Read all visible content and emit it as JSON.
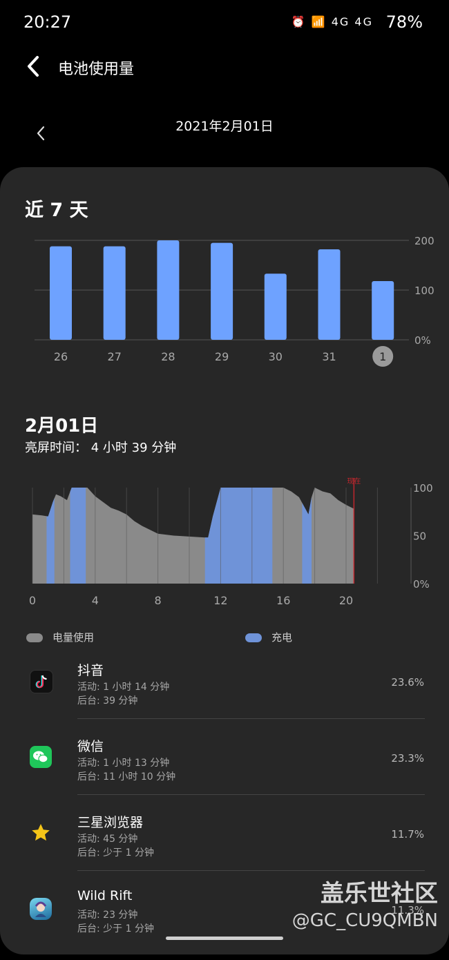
{
  "status": {
    "time": "20:27",
    "icons": "⏰ 📶 4G 4G",
    "battery": "78%"
  },
  "header": {
    "title": "电池使用量"
  },
  "date_nav": {
    "date": "2021年2月01日"
  },
  "weekly": {
    "title": "近 7 天"
  },
  "day": {
    "title": "2月01日",
    "screen_time": "亮屏时间： 4 小时 39 分钟"
  },
  "legend": {
    "usage": "电量使用",
    "usage_color": "#8a8a8a",
    "charge": "充电",
    "charge_color": "#6f93d8"
  },
  "chart_data": [
    {
      "type": "bar",
      "categories": [
        "26",
        "27",
        "28",
        "29",
        "30",
        "31",
        "1"
      ],
      "values": [
        188,
        188,
        200,
        195,
        133,
        182,
        118
      ],
      "y_tick_labels": [
        "200",
        "100",
        "0%"
      ],
      "ylim": [
        0,
        200
      ],
      "highlight_category": "1",
      "color": "#6ea2ff"
    },
    {
      "type": "area",
      "x_ticks": [
        "0",
        "4",
        "8",
        "12",
        "16",
        "20"
      ],
      "y_tick_labels": [
        "100",
        "50",
        "0%"
      ],
      "xlim": [
        0,
        24
      ],
      "ylim": [
        0,
        100
      ],
      "now_label": "现在",
      "now_x": 20.5,
      "series": [
        {
          "x": [
            0,
            0.6,
            1.0,
            1.3,
            1.5,
            1.8,
            2.2,
            2.5,
            3.5,
            4,
            4.5,
            5,
            5.5,
            6,
            6.5,
            7,
            8,
            9,
            10,
            11,
            11.2,
            11.5,
            12,
            13,
            14,
            15,
            16,
            16.5,
            17,
            17.3,
            17.6,
            17.8,
            18,
            18.5,
            19,
            19.5,
            20,
            20.5
          ],
          "y": [
            72,
            71,
            70,
            85,
            93,
            91,
            87,
            100,
            100,
            91,
            85,
            79,
            76,
            72,
            65,
            60,
            52,
            50,
            49,
            48,
            48,
            70,
            100,
            100,
            100,
            100,
            100,
            96,
            90,
            81,
            72,
            90,
            100,
            96,
            94,
            87,
            82,
            78
          ]
        }
      ],
      "charging_intervals": [
        [
          0.9,
          1.4
        ],
        [
          2.4,
          3.4
        ],
        [
          11.0,
          15.3
        ],
        [
          17.2,
          17.8
        ]
      ]
    }
  ],
  "apps": [
    {
      "name": "抖音",
      "active": "活动: 1 小时 14 分钟",
      "background": "后台: 39 分钟",
      "percent": "23.6%",
      "icon": "tiktok-icon"
    },
    {
      "name": "微信",
      "active": "活动: 1 小时 13 分钟",
      "background": "后台: 11 小时 10 分钟",
      "percent": "23.3%",
      "icon": "wechat-icon"
    },
    {
      "name": "三星浏览器",
      "active": "活动: 45 分钟",
      "background": "后台: 少于 1 分钟",
      "percent": "11.7%",
      "icon": "star-icon"
    },
    {
      "name": "Wild Rift",
      "active": "活动: 23 分钟",
      "background": "后台: 少于 1 分钟",
      "percent": "11.3%",
      "icon": "game-icon"
    }
  ],
  "watermark": {
    "line1": "盖乐世社区",
    "line2": "@GC_CU9QMBN"
  }
}
